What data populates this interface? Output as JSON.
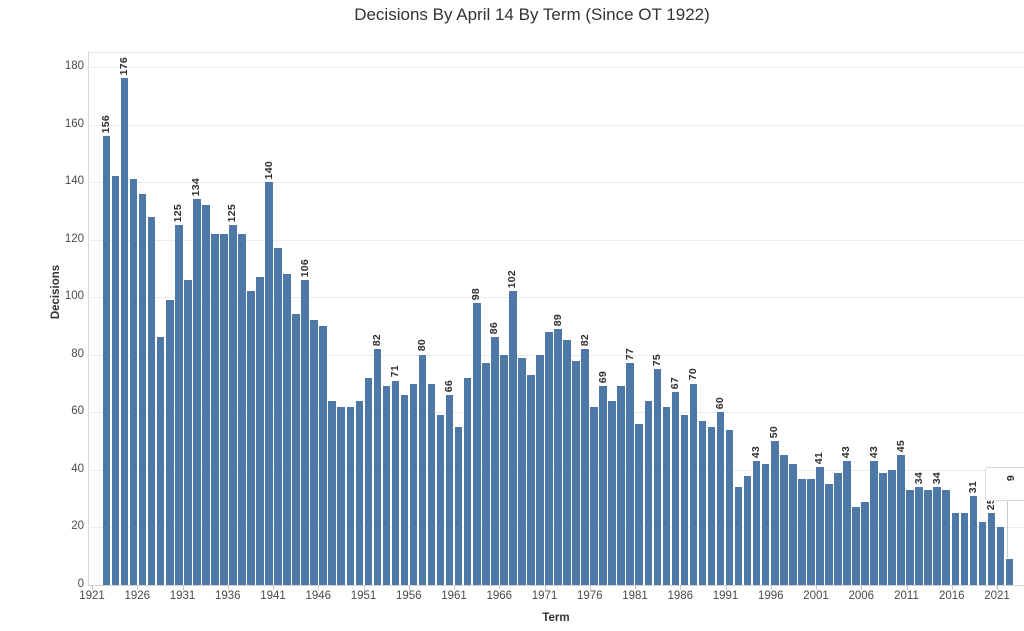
{
  "chart_data": {
    "type": "bar",
    "title": "Decisions By April 14 By Term (Since OT 1922)",
    "xlabel": "Term",
    "ylabel": "Decisions",
    "bar_color": "#4e79a7",
    "background_color": "#ffffff",
    "gridlines": "horizontal, light gray, every 20",
    "ylim": [
      0,
      190
    ],
    "y_ticks": [
      0,
      20,
      40,
      60,
      80,
      100,
      120,
      140,
      160,
      180
    ],
    "x_ticks": [
      1921,
      1926,
      1931,
      1936,
      1941,
      1946,
      1951,
      1956,
      1961,
      1966,
      1971,
      1976,
      1981,
      1986,
      1991,
      1996,
      2001,
      2006,
      2011,
      2016,
      2021
    ],
    "first_term": 1922,
    "values": [
      156,
      142,
      176,
      141,
      136,
      128,
      86,
      99,
      125,
      106,
      134,
      132,
      122,
      122,
      125,
      122,
      102,
      107,
      140,
      117,
      108,
      94,
      106,
      92,
      90,
      64,
      62,
      62,
      64,
      72,
      82,
      69,
      71,
      66,
      70,
      80,
      70,
      59,
      66,
      55,
      72,
      98,
      77,
      86,
      80,
      102,
      79,
      73,
      80,
      88,
      89,
      85,
      78,
      82,
      62,
      69,
      64,
      69,
      77,
      56,
      64,
      75,
      62,
      67,
      59,
      70,
      57,
      55,
      60,
      54,
      34,
      38,
      43,
      42,
      50,
      45,
      42,
      37,
      37,
      41,
      35,
      39,
      43,
      27,
      29,
      43,
      39,
      40,
      45,
      33,
      34,
      33,
      34,
      33,
      25,
      25,
      31,
      22,
      25,
      20,
      9
    ],
    "labeled_terms": [
      1922,
      1924,
      1930,
      1932,
      1936,
      1940,
      1944,
      1952,
      1954,
      1957,
      1960,
      1963,
      1965,
      1967,
      1972,
      1975,
      1977,
      1980,
      1983,
      1985,
      1987,
      1990,
      1994,
      1996,
      2001,
      2004,
      2007,
      2010,
      2012,
      2014,
      2018,
      2020
    ],
    "callout": {
      "term": 2022,
      "label": "9"
    },
    "legend": "none"
  }
}
